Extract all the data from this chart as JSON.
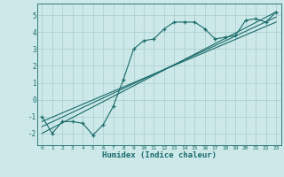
{
  "xlabel": "Humidex (Indice chaleur)",
  "bg_color": "#cce8e8",
  "line_color": "#1a6b6b",
  "grid_color": "#aacccc",
  "xlim": [
    -0.5,
    23.5
  ],
  "ylim": [
    -2.7,
    5.7
  ],
  "xticks": [
    0,
    1,
    2,
    3,
    4,
    5,
    6,
    7,
    8,
    9,
    10,
    11,
    12,
    13,
    14,
    15,
    16,
    17,
    18,
    19,
    20,
    21,
    22,
    23
  ],
  "yticks": [
    -2,
    -1,
    0,
    1,
    2,
    3,
    4,
    5
  ],
  "main_curve_x": [
    0,
    1,
    2,
    3,
    4,
    5,
    6,
    7,
    8,
    9,
    10,
    11,
    12,
    13,
    14,
    15,
    16,
    17,
    18,
    19,
    20,
    21,
    22,
    23
  ],
  "main_curve_y": [
    -1.0,
    -2.0,
    -1.3,
    -1.3,
    -1.4,
    -2.1,
    -1.5,
    -0.4,
    1.2,
    3.0,
    3.5,
    3.6,
    4.2,
    4.6,
    4.6,
    4.6,
    4.2,
    3.6,
    3.7,
    3.8,
    4.7,
    4.8,
    4.6,
    5.2
  ],
  "line1_x": [
    0,
    23
  ],
  "line1_y": [
    -2.0,
    5.2
  ],
  "line2_x": [
    0,
    23
  ],
  "line2_y": [
    -1.6,
    4.9
  ],
  "line3_x": [
    0,
    23
  ],
  "line3_y": [
    -1.3,
    4.6
  ]
}
